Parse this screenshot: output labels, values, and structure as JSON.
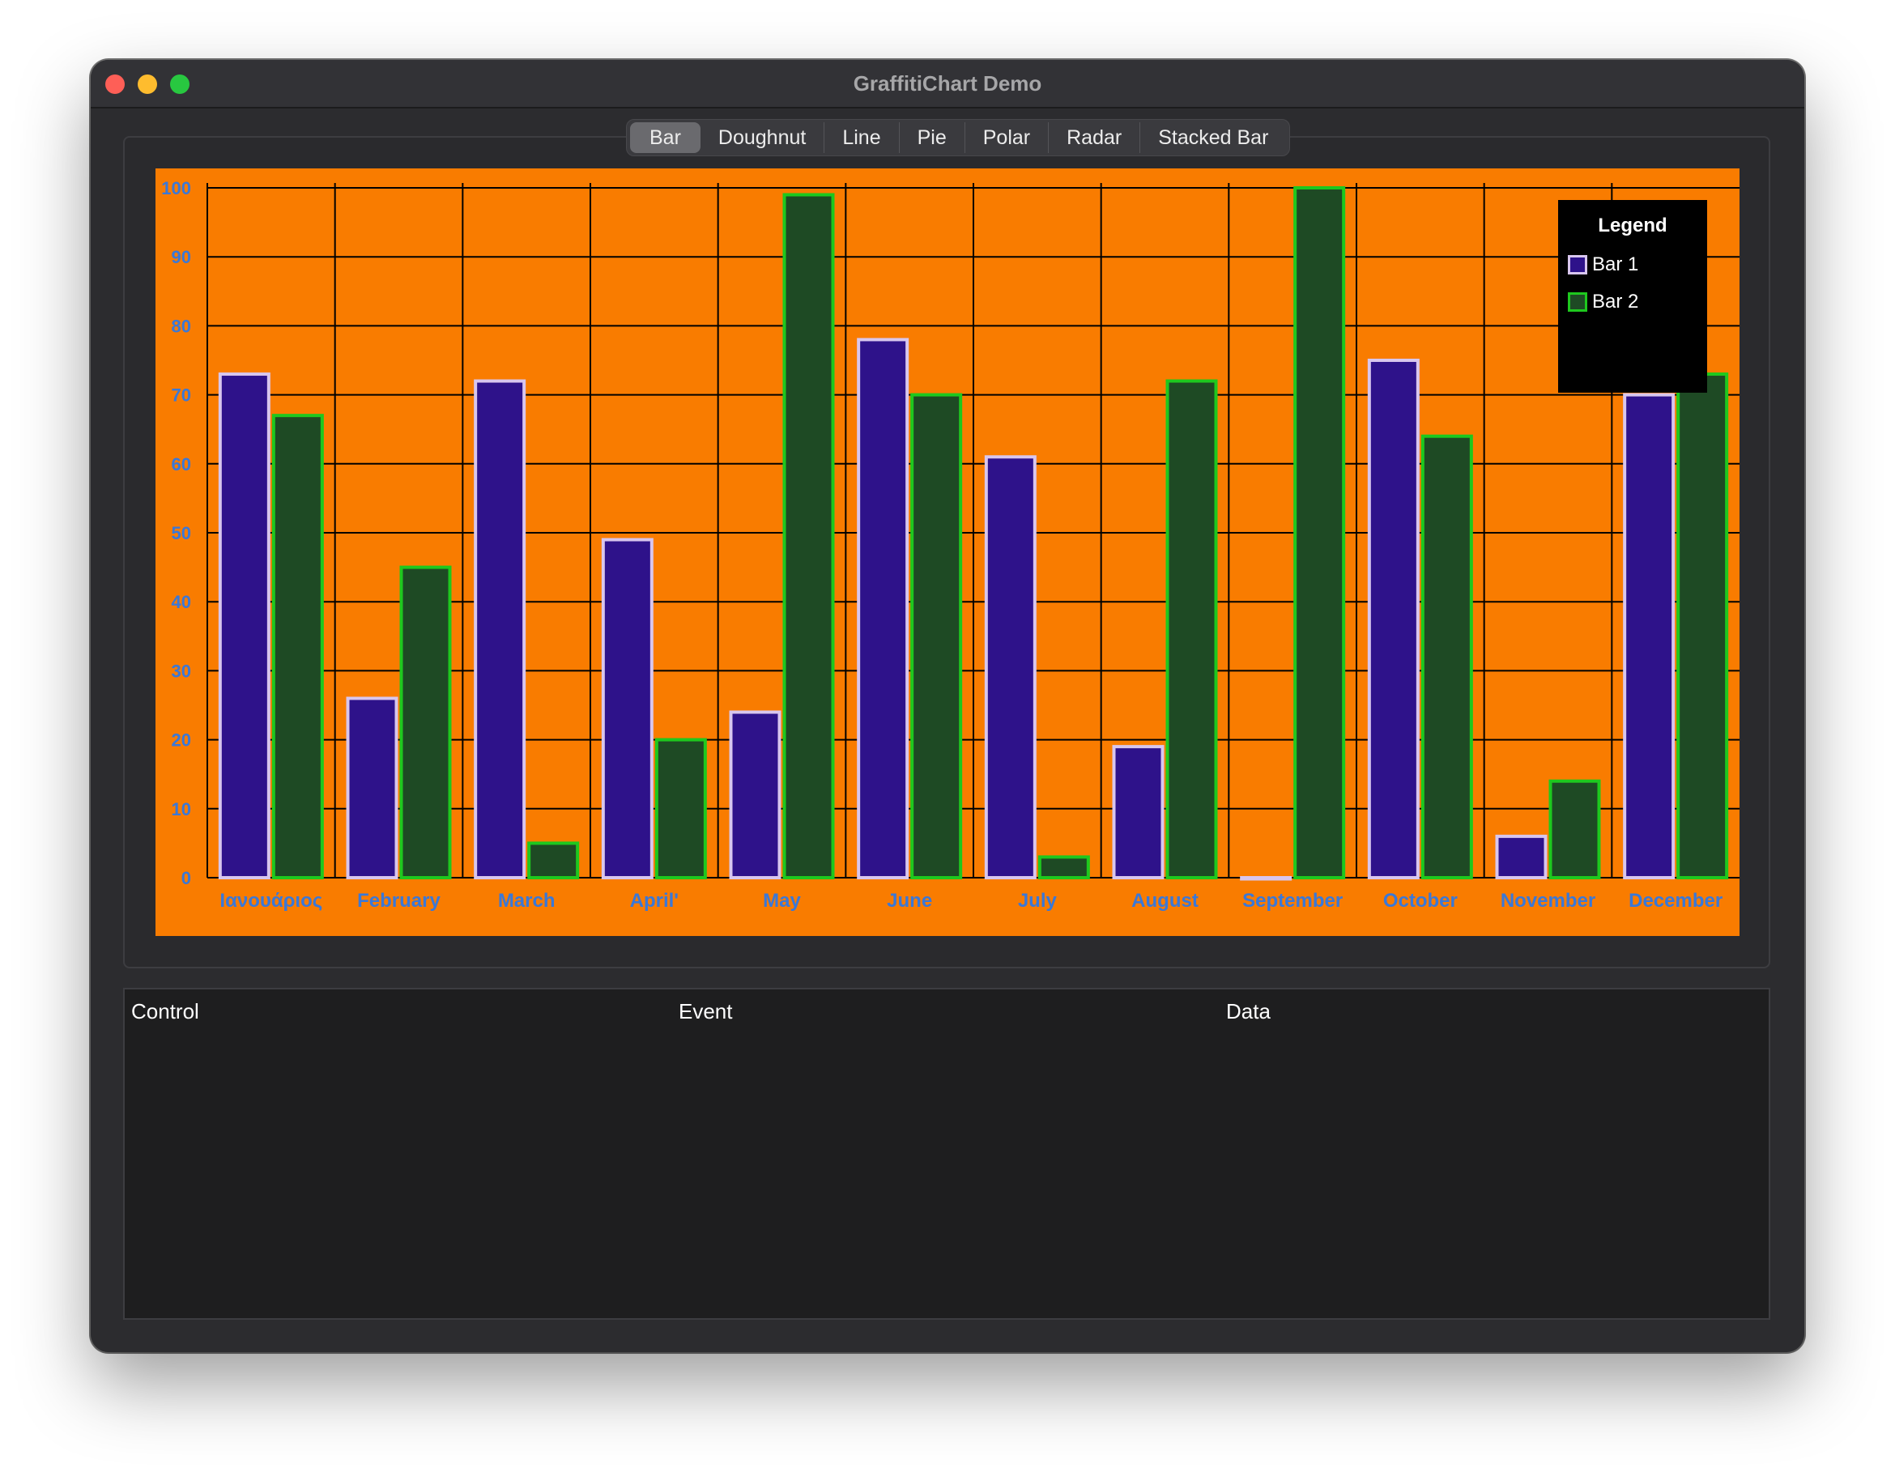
{
  "window": {
    "title": "GraffitiChart Demo"
  },
  "tabs": [
    {
      "label": "Bar",
      "active": true
    },
    {
      "label": "Doughnut"
    },
    {
      "label": "Line"
    },
    {
      "label": "Pie"
    },
    {
      "label": "Polar"
    },
    {
      "label": "Radar"
    },
    {
      "label": "Stacked Bar"
    }
  ],
  "legend": {
    "title": "Legend",
    "items": [
      {
        "label": "Bar 1",
        "fill": "#2e128a",
        "border": "#d8c6ee"
      },
      {
        "label": "Bar 2",
        "fill": "#1e4a24",
        "border": "#1ec81e"
      }
    ]
  },
  "chart_data": {
    "type": "bar",
    "categories": [
      "Ιανουάριος",
      "February",
      "March",
      "April'",
      "May",
      "June",
      "July",
      "August",
      "September",
      "October",
      "November",
      "December"
    ],
    "series": [
      {
        "name": "Bar 1",
        "values": [
          73,
          26,
          72,
          49,
          24,
          78,
          61,
          19,
          0,
          75,
          6,
          70
        ]
      },
      {
        "name": "Bar 2",
        "values": [
          67,
          45,
          5,
          20,
          99,
          70,
          3,
          72,
          100,
          64,
          14,
          73
        ]
      }
    ],
    "ylim": [
      0,
      100
    ],
    "yticks": [
      0,
      10,
      20,
      30,
      40,
      50,
      60,
      70,
      80,
      90,
      100
    ],
    "grid": true,
    "legend_position": "top-right",
    "colors": {
      "background": "#f97c00",
      "grid": "#000000",
      "tick_labels": "#3a78d8",
      "bar1_fill": "#2e128a",
      "bar1_border": "#d8c6ee",
      "bar2_fill": "#1e4a24",
      "bar2_border": "#1ec81e"
    }
  },
  "table": {
    "columns": [
      "Control",
      "Event",
      "Data"
    ]
  }
}
